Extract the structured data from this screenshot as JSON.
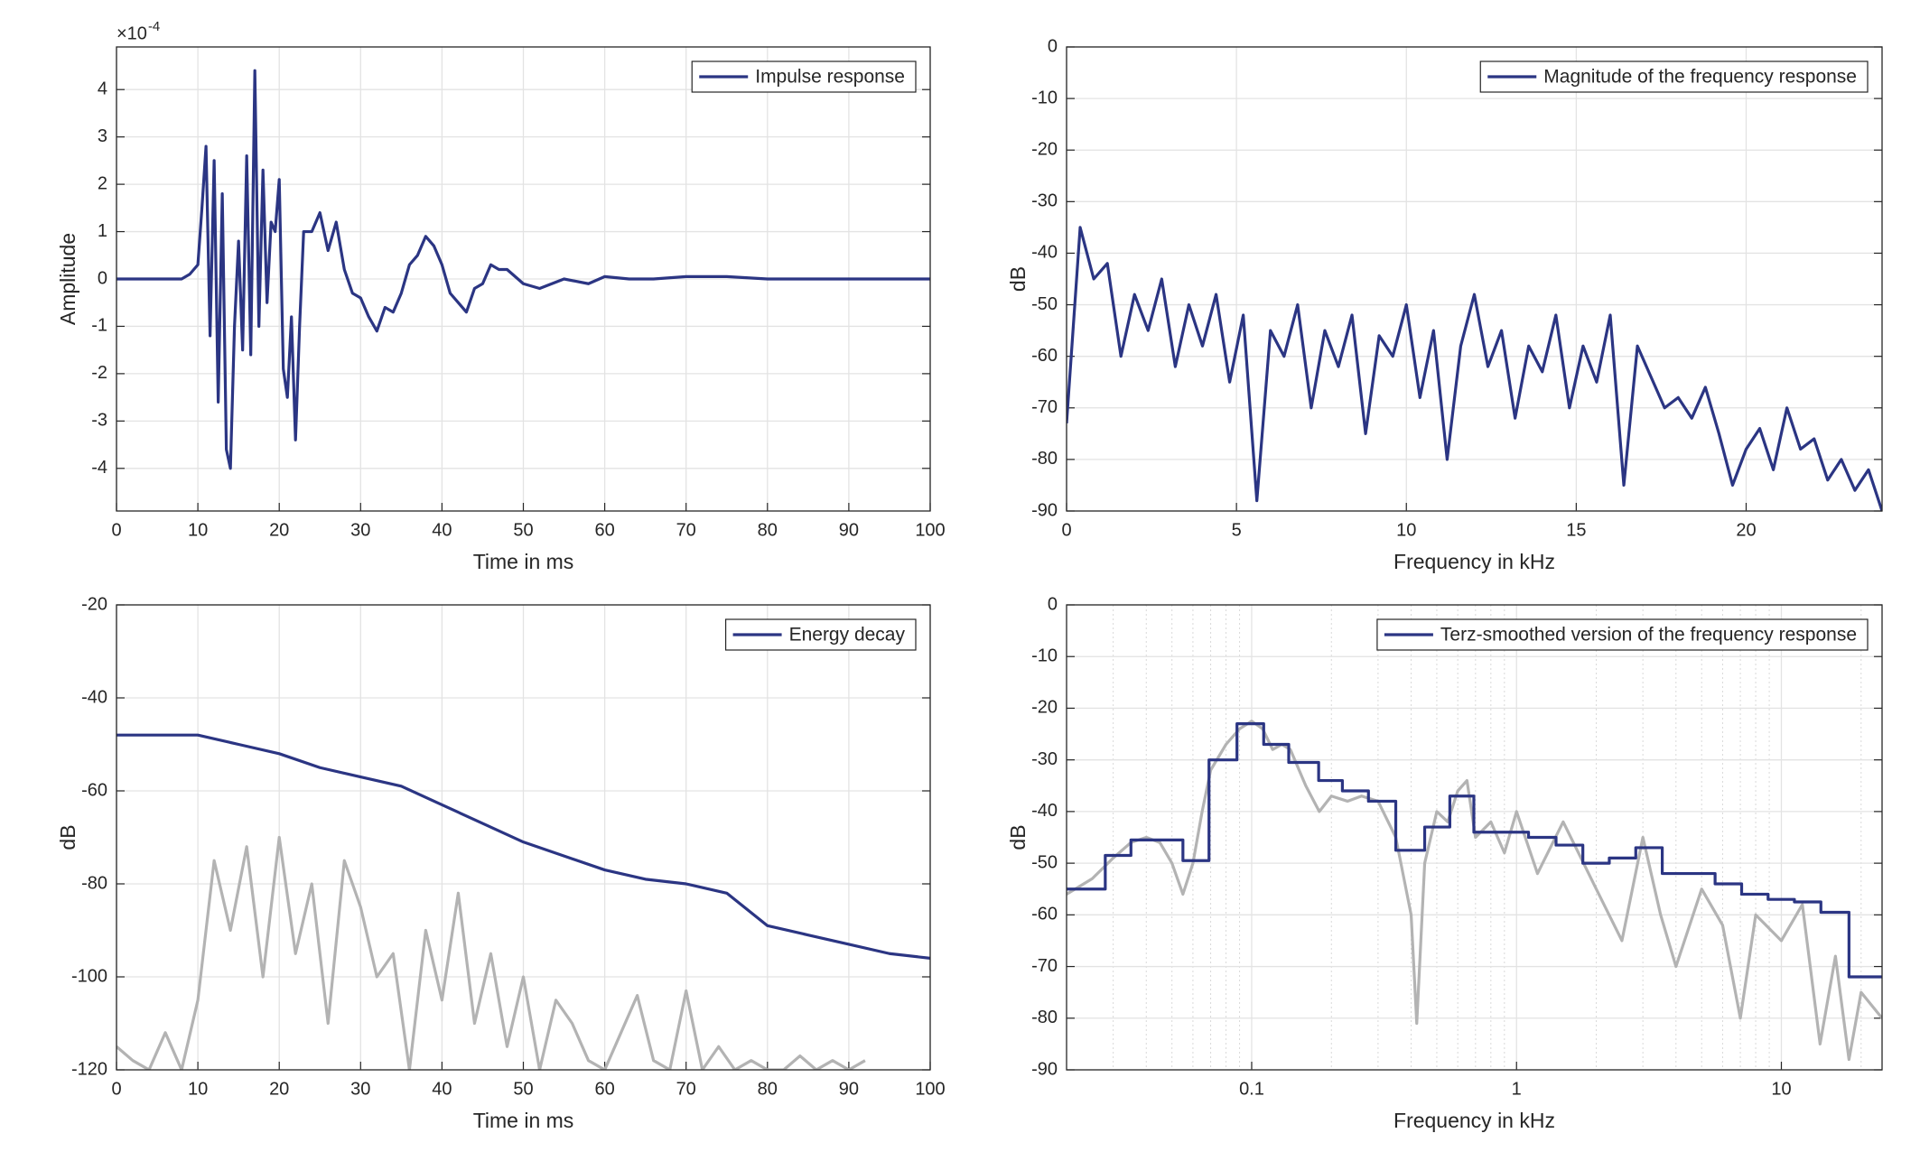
{
  "chart_data": [
    {
      "type": "line",
      "xlabel": "Time in ms",
      "ylabel": "Amplitude",
      "y_exponent": {
        "base": "×10",
        "power": "-4"
      },
      "xlim": [
        0,
        100
      ],
      "xticks": [
        0,
        10,
        20,
        30,
        40,
        50,
        60,
        70,
        80,
        90,
        100
      ],
      "ylim": [
        -4.9,
        4.9
      ],
      "yticks": [
        -4,
        -3,
        -2,
        -1,
        0,
        1,
        2,
        3,
        4
      ],
      "grid": true,
      "legend": "northeast",
      "series": [
        {
          "name": "Impulse response",
          "color": "#2b3583",
          "x": [
            0,
            2,
            4,
            6,
            8,
            9,
            10,
            10.5,
            11,
            11.5,
            12,
            12.5,
            13,
            13.5,
            14,
            14.5,
            15,
            15.5,
            16,
            16.5,
            17,
            17.5,
            18,
            18.5,
            19,
            19.5,
            20,
            20.5,
            21,
            21.5,
            22,
            22.5,
            23,
            24,
            25,
            26,
            27,
            28,
            29,
            30,
            31,
            32,
            33,
            34,
            35,
            36,
            37,
            38,
            39,
            40,
            41,
            42,
            43,
            44,
            45,
            46,
            47,
            48,
            50,
            52,
            55,
            58,
            60,
            63,
            66,
            70,
            75,
            80,
            90,
            100
          ],
          "values": [
            0,
            0,
            0,
            0,
            0,
            0.1,
            0.3,
            1.5,
            2.8,
            -1.2,
            2.5,
            -2.6,
            1.8,
            -3.6,
            -4.0,
            -1.0,
            0.8,
            -1.5,
            2.6,
            -1.6,
            4.4,
            -1.0,
            2.3,
            -0.5,
            1.2,
            1.0,
            2.1,
            -1.9,
            -2.5,
            -0.8,
            -3.4,
            -1.0,
            1.0,
            1.0,
            1.4,
            0.6,
            1.2,
            0.2,
            -0.3,
            -0.4,
            -0.8,
            -1.1,
            -0.6,
            -0.7,
            -0.3,
            0.3,
            0.5,
            0.9,
            0.7,
            0.3,
            -0.3,
            -0.5,
            -0.7,
            -0.2,
            -0.1,
            0.3,
            0.2,
            0.2,
            -0.1,
            -0.2,
            0,
            -0.1,
            0.05,
            0,
            0,
            0.05,
            0.05,
            0,
            0,
            0
          ]
        }
      ]
    },
    {
      "type": "line",
      "xlabel": "Frequency in kHz",
      "ylabel": "dB",
      "xlim": [
        0,
        24
      ],
      "xticks": [
        0,
        5,
        10,
        15,
        20
      ],
      "ylim": [
        -90,
        0
      ],
      "yticks": [
        -90,
        -80,
        -70,
        -60,
        -50,
        -40,
        -30,
        -20,
        -10,
        0
      ],
      "grid": true,
      "legend": "northeast",
      "series": [
        {
          "name": "Magnitude of the frequency response",
          "color": "#2b3583",
          "x": [
            0,
            0.4,
            0.8,
            1.2,
            1.6,
            2.0,
            2.4,
            2.8,
            3.2,
            3.6,
            4.0,
            4.4,
            4.8,
            5.2,
            5.6,
            6.0,
            6.4,
            6.8,
            7.2,
            7.6,
            8.0,
            8.4,
            8.8,
            9.2,
            9.6,
            10.0,
            10.4,
            10.8,
            11.2,
            11.6,
            12.0,
            12.4,
            12.8,
            13.2,
            13.6,
            14.0,
            14.4,
            14.8,
            15.2,
            15.6,
            16.0,
            16.4,
            16.8,
            17.2,
            17.6,
            18.0,
            18.4,
            18.8,
            19.2,
            19.6,
            20.0,
            20.4,
            20.8,
            21.2,
            21.6,
            22.0,
            22.4,
            22.8,
            23.2,
            23.6,
            24.0
          ],
          "values": [
            -73,
            -35,
            -45,
            -42,
            -60,
            -48,
            -55,
            -45,
            -62,
            -50,
            -58,
            -48,
            -65,
            -52,
            -88,
            -55,
            -60,
            -50,
            -70,
            -55,
            -62,
            -52,
            -75,
            -56,
            -60,
            -50,
            -68,
            -55,
            -80,
            -58,
            -48,
            -62,
            -55,
            -72,
            -58,
            -63,
            -52,
            -70,
            -58,
            -65,
            -52,
            -85,
            -58,
            -64,
            -70,
            -68,
            -72,
            -66,
            -75,
            -85,
            -78,
            -74,
            -82,
            -70,
            -78,
            -76,
            -84,
            -80,
            -86,
            -82,
            -90
          ]
        }
      ]
    },
    {
      "type": "line",
      "xlabel": "Time in ms",
      "ylabel": "dB",
      "xlim": [
        0,
        100
      ],
      "xticks": [
        0,
        10,
        20,
        30,
        40,
        50,
        60,
        70,
        80,
        90,
        100
      ],
      "ylim": [
        -120,
        -20
      ],
      "yticks": [
        -120,
        -100,
        -80,
        -60,
        -40,
        -20
      ],
      "grid": true,
      "legend": "northeast",
      "series": [
        {
          "color": "#b3b3b3",
          "x": [
            0,
            2,
            4,
            6,
            8,
            10,
            12,
            14,
            16,
            18,
            20,
            22,
            24,
            26,
            28,
            30,
            32,
            34,
            36,
            38,
            40,
            42,
            44,
            46,
            48,
            50,
            52,
            54,
            56,
            58,
            60,
            62,
            64,
            66,
            68,
            70,
            72,
            74,
            76,
            78,
            80,
            82,
            84,
            86,
            88,
            90,
            92
          ],
          "values": [
            -115,
            -118,
            -120,
            -112,
            -120,
            -105,
            -75,
            -90,
            -72,
            -100,
            -70,
            -95,
            -80,
            -110,
            -75,
            -85,
            -100,
            -95,
            -120,
            -90,
            -105,
            -82,
            -110,
            -95,
            -115,
            -100,
            -120,
            -105,
            -110,
            -118,
            -120,
            -112,
            -104,
            -118,
            -120,
            -103,
            -120,
            -115,
            -120,
            -118,
            -120,
            -120,
            -117,
            -120,
            -118,
            -120,
            -118
          ]
        },
        {
          "name": "Energy decay",
          "color": "#2b3583",
          "x": [
            0,
            10,
            15,
            20,
            25,
            30,
            35,
            40,
            45,
            50,
            55,
            60,
            65,
            70,
            75,
            80,
            85,
            90,
            95,
            100
          ],
          "values": [
            -48,
            -48,
            -50,
            -52,
            -55,
            -57,
            -59,
            -63,
            -67,
            -71,
            -74,
            -77,
            -79,
            -80,
            -82,
            -89,
            -91,
            -93,
            -95,
            -96
          ]
        }
      ]
    },
    {
      "type": "line",
      "xlabel": "Frequency in kHz",
      "ylabel": "dB",
      "xscale": "log",
      "xlim": [
        0.02,
        24
      ],
      "xticks": [
        0.1,
        1,
        10
      ],
      "xminorticks": [
        0.02,
        0.03,
        0.04,
        0.05,
        0.06,
        0.07,
        0.08,
        0.09,
        0.2,
        0.3,
        0.4,
        0.5,
        0.6,
        0.7,
        0.8,
        0.9,
        2,
        3,
        4,
        5,
        6,
        7,
        8,
        9,
        20
      ],
      "ylim": [
        -90,
        0
      ],
      "yticks": [
        -90,
        -80,
        -70,
        -60,
        -50,
        -40,
        -30,
        -20,
        -10,
        0
      ],
      "grid": true,
      "legend": "northeast",
      "series": [
        {
          "color": "#b3b3b3",
          "x": [
            0.02,
            0.025,
            0.03,
            0.035,
            0.04,
            0.045,
            0.05,
            0.055,
            0.06,
            0.065,
            0.07,
            0.08,
            0.09,
            0.1,
            0.11,
            0.12,
            0.13,
            0.14,
            0.16,
            0.18,
            0.2,
            0.23,
            0.26,
            0.3,
            0.35,
            0.4,
            0.42,
            0.45,
            0.5,
            0.55,
            0.6,
            0.65,
            0.7,
            0.8,
            0.9,
            1,
            1.2,
            1.5,
            2,
            2.5,
            3,
            3.5,
            4,
            5,
            6,
            7,
            8,
            10,
            12,
            14,
            16,
            18,
            20,
            24
          ],
          "values": [
            -56,
            -53,
            -49,
            -46,
            -45,
            -46,
            -50,
            -56,
            -50,
            -40,
            -32,
            -27,
            -24,
            -22.5,
            -24,
            -28,
            -27,
            -28,
            -35,
            -40,
            -37,
            -38,
            -37,
            -38,
            -45,
            -60,
            -81,
            -50,
            -40,
            -42,
            -36,
            -34,
            -45,
            -42,
            -48,
            -40,
            -52,
            -42,
            -55,
            -65,
            -45,
            -60,
            -70,
            -55,
            -62,
            -80,
            -60,
            -65,
            -58,
            -85,
            -68,
            -88,
            -75,
            -80
          ]
        },
        {
          "name": "Terz-smoothed version of the frequency response",
          "color": "#2b3583",
          "step": "post",
          "x": [
            0.02,
            0.028,
            0.035,
            0.055,
            0.069,
            0.088,
            0.111,
            0.138,
            0.179,
            0.22,
            0.276,
            0.35,
            0.45,
            0.56,
            0.69,
            0.89,
            1.11,
            1.41,
            1.78,
            2.24,
            2.82,
            3.55,
            4.47,
            5.62,
            7.08,
            8.91,
            11.2,
            14.1,
            18,
            24
          ],
          "values": [
            -55,
            -48.5,
            -45.5,
            -49.5,
            -30,
            -23,
            -27,
            -30.5,
            -34,
            -36,
            -38,
            -47.5,
            -43,
            -37,
            -44,
            -44,
            -45,
            -46.5,
            -50,
            -49,
            -47,
            -52,
            -52,
            -54,
            -56,
            -57,
            -57.5,
            -59.5,
            -72,
            -72
          ]
        }
      ]
    }
  ]
}
